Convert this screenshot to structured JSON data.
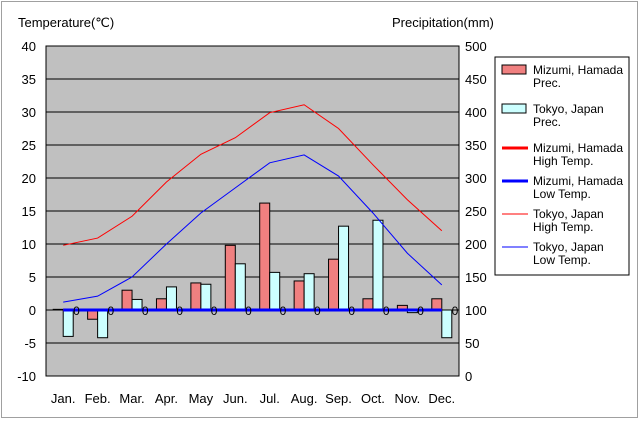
{
  "chart_data": {
    "type": "bar+line",
    "title_left": "Temperature(℃)",
    "title_right": "Precipitation(mm)",
    "categories": [
      "Jan.",
      "Feb.",
      "Mar.",
      "Apr.",
      "May",
      "Jun.",
      "Jul.",
      "Aug.",
      "Sep.",
      "Oct.",
      "Nov.",
      "Dec."
    ],
    "left_axis": {
      "min": -10,
      "max": 40,
      "step": 5
    },
    "right_axis": {
      "min": 0,
      "max": 500,
      "step": 50
    },
    "bar_series": [
      {
        "name": "Mizumi, Hamada Prec.",
        "legend_lines": [
          "Mizumi, Hamada",
          "Prec."
        ],
        "color": "#f08080",
        "values": [
          101,
          86,
          130,
          117,
          141,
          198,
          262,
          144,
          177,
          117,
          107,
          117
        ]
      },
      {
        "name": "Tokyo, Japan Prec.",
        "legend_lines": [
          "Tokyo, Japan",
          "Prec."
        ],
        "color": "#ccffff",
        "values": [
          60,
          58,
          116,
          135,
          139,
          170,
          157,
          155,
          227,
          236,
          96,
          58
        ]
      }
    ],
    "line_series": [
      {
        "name": "Mizumi, Hamada High Temp.",
        "legend_lines": [
          "Mizumi, Hamada",
          "High Temp."
        ],
        "color": "#ff0000",
        "width": 3,
        "values": [
          0,
          0,
          0,
          0,
          0,
          0,
          0,
          0,
          0,
          0,
          0,
          0
        ]
      },
      {
        "name": "Mizumi, Hamada Low Temp.",
        "legend_lines": [
          "Mizumi, Hamada",
          "Low Temp."
        ],
        "color": "#0000ff",
        "width": 3,
        "values": [
          0,
          0,
          0,
          0,
          0,
          0,
          0,
          0,
          0,
          0,
          0,
          0
        ]
      },
      {
        "name": "Tokyo, Japan High Temp.",
        "legend_lines": [
          "Tokyo, Japan",
          "High Temp."
        ],
        "color": "#ff0000",
        "width": 1,
        "values": [
          9.8,
          10.9,
          14.2,
          19.4,
          23.6,
          26.1,
          29.9,
          31.1,
          27.5,
          22.0,
          16.7,
          12.0
        ]
      },
      {
        "name": "Tokyo, Japan Low Temp.",
        "legend_lines": [
          "Tokyo, Japan",
          "Low Temp."
        ],
        "color": "#0000ff",
        "width": 1,
        "values": [
          1.2,
          2.1,
          5.0,
          10.0,
          14.7,
          18.5,
          22.3,
          23.5,
          20.3,
          14.7,
          8.6,
          3.8
        ]
      }
    ],
    "zero_markers": [
      "0",
      "0",
      "0",
      "0",
      "0",
      "0",
      "0",
      "0",
      "0",
      "0",
      "0",
      "0"
    ]
  }
}
